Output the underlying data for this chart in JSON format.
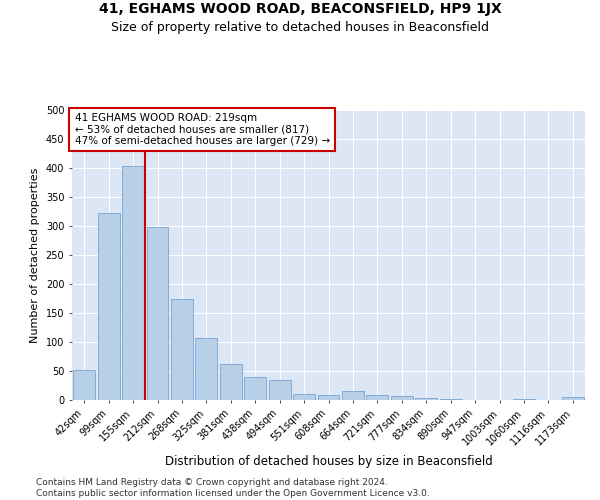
{
  "title": "41, EGHAMS WOOD ROAD, BEACONSFIELD, HP9 1JX",
  "subtitle": "Size of property relative to detached houses in Beaconsfield",
  "xlabel": "Distribution of detached houses by size in Beaconsfield",
  "ylabel": "Number of detached properties",
  "categories": [
    "42sqm",
    "99sqm",
    "155sqm",
    "212sqm",
    "268sqm",
    "325sqm",
    "381sqm",
    "438sqm",
    "494sqm",
    "551sqm",
    "608sqm",
    "664sqm",
    "721sqm",
    "777sqm",
    "834sqm",
    "890sqm",
    "947sqm",
    "1003sqm",
    "1060sqm",
    "1116sqm",
    "1173sqm"
  ],
  "values": [
    52,
    322,
    403,
    298,
    175,
    107,
    62,
    40,
    35,
    10,
    9,
    15,
    9,
    7,
    3,
    1,
    0,
    0,
    1,
    0,
    5
  ],
  "bar_color": "#b8cfe8",
  "bar_edge_color": "#6699cc",
  "vline_color": "#cc0000",
  "annotation_text": "41 EGHAMS WOOD ROAD: 219sqm\n← 53% of detached houses are smaller (817)\n47% of semi-detached houses are larger (729) →",
  "annotation_box_color": "#ffffff",
  "annotation_box_edge_color": "#cc0000",
  "ylim": [
    0,
    500
  ],
  "yticks": [
    0,
    50,
    100,
    150,
    200,
    250,
    300,
    350,
    400,
    450,
    500
  ],
  "background_color": "#dce6f5",
  "footer": "Contains HM Land Registry data © Crown copyright and database right 2024.\nContains public sector information licensed under the Open Government Licence v3.0.",
  "title_fontsize": 10,
  "subtitle_fontsize": 9,
  "xlabel_fontsize": 8.5,
  "ylabel_fontsize": 8,
  "tick_fontsize": 7,
  "annotation_fontsize": 7.5,
  "footer_fontsize": 6.5
}
